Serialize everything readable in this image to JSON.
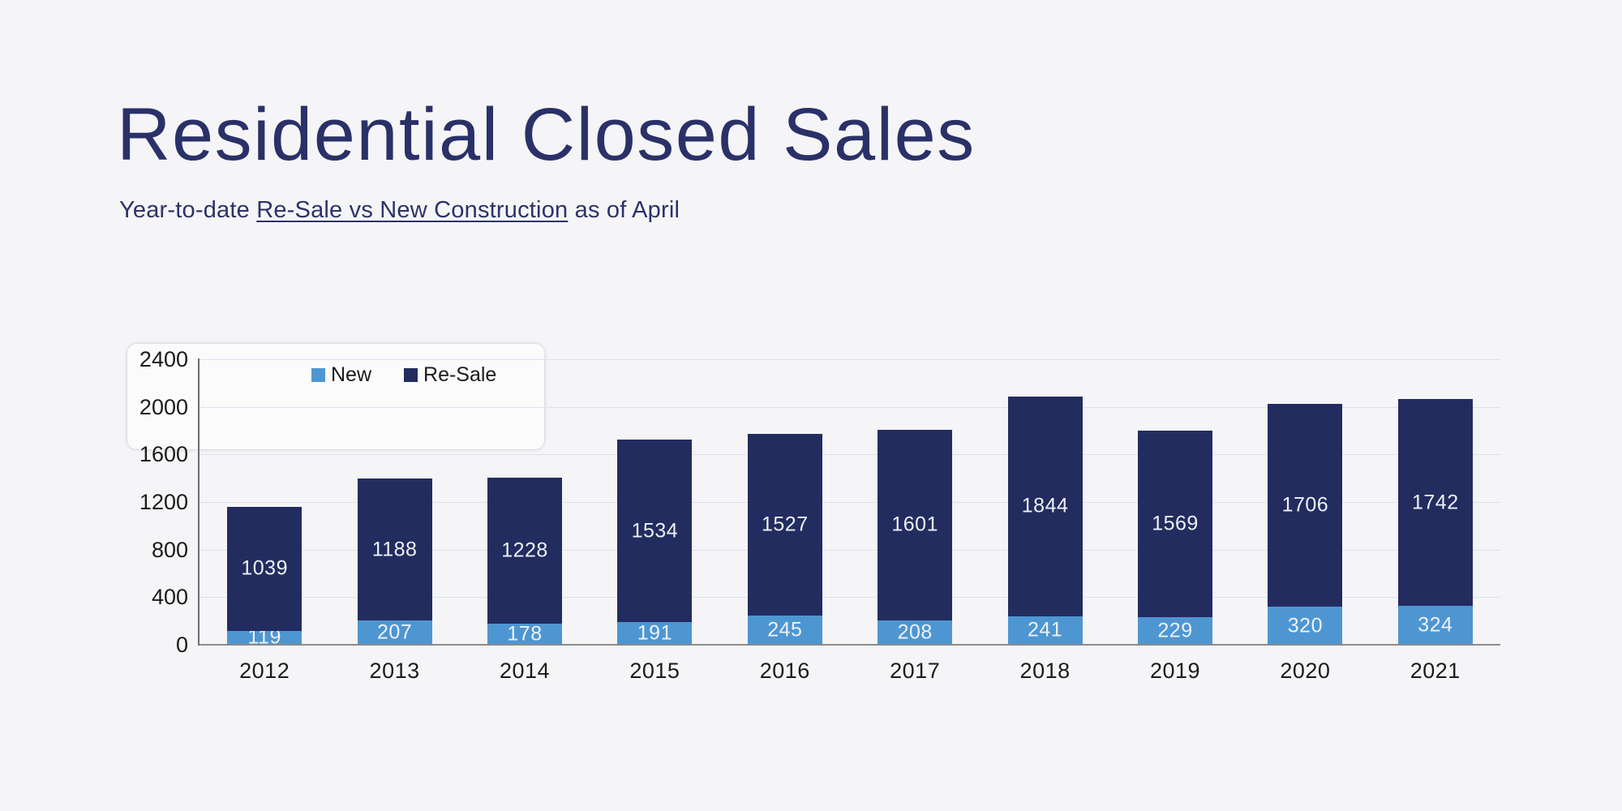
{
  "page": {
    "background": "#f5f5f7"
  },
  "header": {
    "title": "Residential Closed Sales",
    "subtitle_prefix": "Year-to-date ",
    "subtitle_link": "Re-Sale vs New Construction",
    "subtitle_suffix": " as of April"
  },
  "chart_data": {
    "type": "bar",
    "stacked": true,
    "title": "Residential Closed Sales",
    "subtitle": "Year-to-date Re-Sale vs New Construction as of April",
    "categories": [
      "2012",
      "2013",
      "2014",
      "2015",
      "2016",
      "2017",
      "2018",
      "2019",
      "2020",
      "2021"
    ],
    "series": [
      {
        "name": "New",
        "color": "#4e96d2",
        "values": [
          119,
          207,
          178,
          191,
          245,
          208,
          241,
          229,
          320,
          324
        ]
      },
      {
        "name": "Re-Sale",
        "color": "#232c5f",
        "values": [
          1039,
          1188,
          1228,
          1534,
          1527,
          1601,
          1844,
          1569,
          1706,
          1742
        ]
      }
    ],
    "totals": [
      1158,
      1395,
      1406,
      1725,
      1772,
      1809,
      2085,
      1798,
      2026,
      2066
    ],
    "ylim": [
      0,
      2400
    ],
    "yticks": [
      0,
      400,
      800,
      1200,
      1600,
      2000,
      2400
    ],
    "grid": true,
    "legend_position": "top-left-inside",
    "value_labels": true,
    "value_label_color": "#eef1f6",
    "gridline_color": "#dce1ed",
    "axis_line_color": "#8b8b8b",
    "tick_label_color": "#1b1b1b"
  },
  "colors": {
    "title": "#2a3168",
    "subtitle": "#2c3367",
    "background": "#f5f5f7"
  }
}
